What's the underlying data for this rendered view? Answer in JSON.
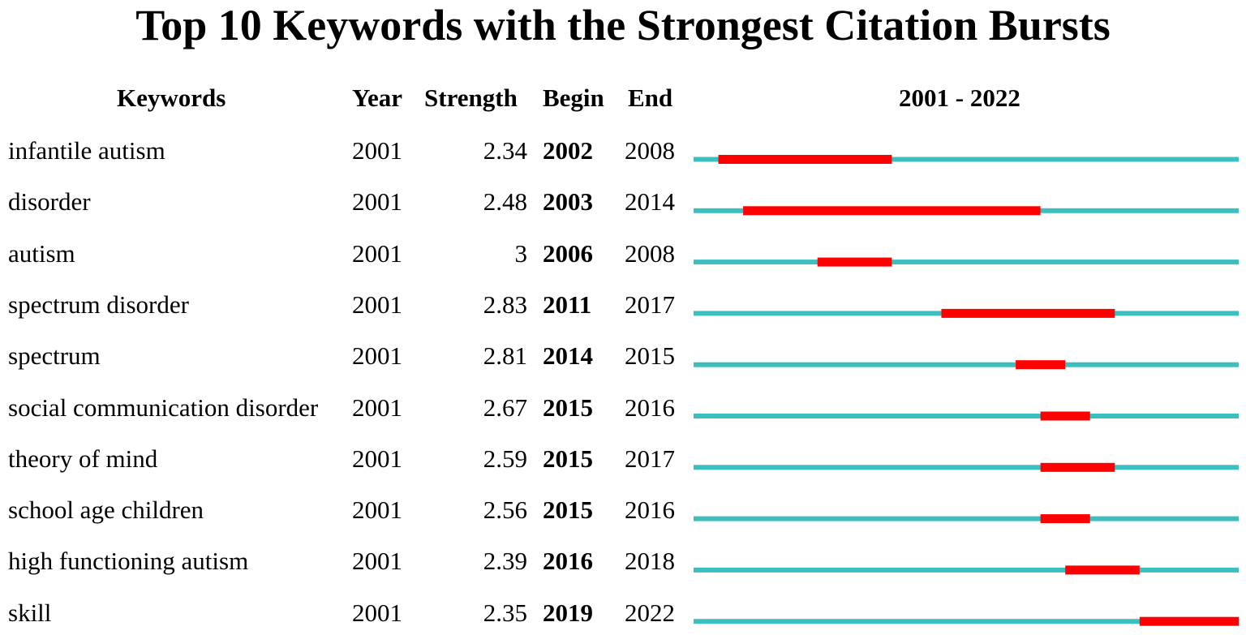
{
  "title": "Top 10 Keywords with the Strongest Citation Bursts",
  "headers": {
    "keywords": "Keywords",
    "year": "Year",
    "strength": "Strength",
    "begin": "Begin",
    "end": "End",
    "range": "2001 - 2022"
  },
  "colors": {
    "baseline": "#3dbfbf",
    "burst": "#ff0000"
  },
  "chart_data": {
    "type": "table",
    "title": "Top 10 Keywords with the Strongest Citation Bursts",
    "timeline_start": 2001,
    "timeline_end": 2022,
    "rows": [
      {
        "keyword": "infantile autism",
        "year": "2001",
        "strength": "2.34",
        "begin": "2002",
        "end": "2008"
      },
      {
        "keyword": "disorder",
        "year": "2001",
        "strength": "2.48",
        "begin": "2003",
        "end": "2014"
      },
      {
        "keyword": "autism",
        "year": "2001",
        "strength": "3",
        "begin": "2006",
        "end": "2008"
      },
      {
        "keyword": "spectrum disorder",
        "year": "2001",
        "strength": "2.83",
        "begin": "2011",
        "end": "2017"
      },
      {
        "keyword": "spectrum",
        "year": "2001",
        "strength": "2.81",
        "begin": "2014",
        "end": "2015"
      },
      {
        "keyword": "social communication disorder",
        "year": "2001",
        "strength": "2.67",
        "begin": "2015",
        "end": "2016"
      },
      {
        "keyword": "theory of mind",
        "year": "2001",
        "strength": "2.59",
        "begin": "2015",
        "end": "2017"
      },
      {
        "keyword": "school age children",
        "year": "2001",
        "strength": "2.56",
        "begin": "2015",
        "end": "2016"
      },
      {
        "keyword": "high functioning autism",
        "year": "2001",
        "strength": "2.39",
        "begin": "2016",
        "end": "2018"
      },
      {
        "keyword": "skill",
        "year": "2001",
        "strength": "2.35",
        "begin": "2019",
        "end": "2022"
      }
    ]
  }
}
